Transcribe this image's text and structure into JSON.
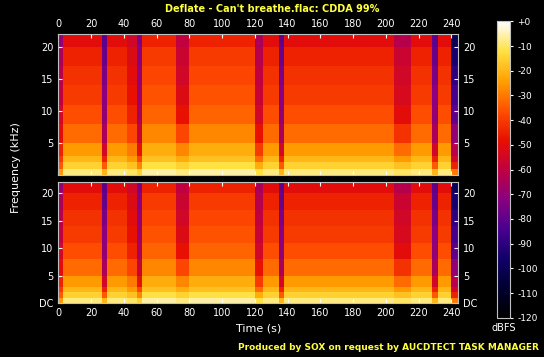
{
  "title": "Deflate - Can't breathe.flac: CDDA 99%",
  "x_label": "Time (s)",
  "y_label": "Frequency (kHz)",
  "footer": "Produced by SOX on request by AUCDTECT TASK MANAGER",
  "colorbar": {
    "label": "dBFS",
    "range": [
      -120,
      0
    ],
    "ticks": [
      {
        "value": 0,
        "label": "+0"
      },
      -10,
      -20,
      -30,
      -40,
      -50,
      -60,
      -70,
      -80,
      -90,
      -100,
      -110,
      -120
    ]
  },
  "chart_data": [
    {
      "type": "heatmap",
      "xlim": [
        0,
        244
      ],
      "ylim": [
        0,
        22.05
      ],
      "xticks": [
        0,
        20,
        40,
        60,
        80,
        100,
        120,
        140,
        160,
        180,
        200,
        220,
        240
      ],
      "yticks": [
        5,
        10,
        15,
        20
      ],
      "time_edges": [
        0,
        3,
        27,
        30,
        42,
        48,
        51,
        72,
        80,
        120,
        125,
        135,
        138,
        205,
        215,
        228,
        232,
        240,
        244
      ],
      "frequency_edges": [
        0,
        1,
        2,
        3,
        5,
        8,
        11,
        14,
        17,
        20,
        22.05
      ],
      "cells": [
        [
          -25,
          -8,
          -20,
          -8,
          -10,
          -15,
          -6,
          -8,
          -6,
          -12,
          -8,
          -20,
          -8,
          -10,
          -8,
          -20,
          -8,
          -30
        ],
        [
          -35,
          -15,
          -35,
          -15,
          -18,
          -28,
          -12,
          -15,
          -12,
          -22,
          -15,
          -35,
          -15,
          -18,
          -15,
          -35,
          -15,
          -45
        ],
        [
          -40,
          -20,
          -45,
          -20,
          -25,
          -38,
          -18,
          -22,
          -18,
          -32,
          -20,
          -45,
          -20,
          -25,
          -20,
          -45,
          -20,
          -55
        ],
        [
          -45,
          -25,
          -55,
          -25,
          -30,
          -48,
          -22,
          -28,
          -22,
          -40,
          -25,
          -55,
          -25,
          -32,
          -25,
          -55,
          -25,
          -62
        ],
        [
          -50,
          -32,
          -65,
          -32,
          -38,
          -58,
          -28,
          -38,
          -28,
          -48,
          -32,
          -65,
          -32,
          -42,
          -32,
          -65,
          -32,
          -70
        ],
        [
          -55,
          -37,
          -70,
          -37,
          -45,
          -65,
          -33,
          -48,
          -33,
          -55,
          -37,
          -70,
          -37,
          -50,
          -37,
          -70,
          -37,
          -80
        ],
        [
          -60,
          -40,
          -72,
          -40,
          -48,
          -68,
          -36,
          -52,
          -36,
          -58,
          -40,
          -72,
          -40,
          -53,
          -40,
          -72,
          -40,
          -85
        ],
        [
          -62,
          -42,
          -75,
          -42,
          -50,
          -70,
          -38,
          -55,
          -38,
          -60,
          -42,
          -75,
          -42,
          -55,
          -42,
          -75,
          -42,
          -90
        ],
        [
          -65,
          -45,
          -78,
          -45,
          -52,
          -72,
          -40,
          -57,
          -40,
          -62,
          -45,
          -78,
          -45,
          -57,
          -45,
          -78,
          -45,
          -95
        ],
        [
          -70,
          -50,
          -80,
          -50,
          -55,
          -75,
          -45,
          -60,
          -45,
          -65,
          -50,
          -80,
          -50,
          -62,
          -50,
          -80,
          -50,
          -100
        ]
      ]
    },
    {
      "type": "heatmap",
      "xlim": [
        0,
        244
      ],
      "ylim": [
        0,
        22.05
      ],
      "xticks": [
        0,
        20,
        40,
        60,
        80,
        100,
        120,
        140,
        160,
        180,
        200,
        220,
        240
      ],
      "yticks": [
        {
          "value": 0,
          "label": "DC"
        },
        5,
        10,
        15,
        20
      ],
      "time_edges": [
        0,
        3,
        27,
        30,
        42,
        48,
        51,
        72,
        80,
        120,
        125,
        135,
        138,
        205,
        215,
        228,
        232,
        240,
        244
      ],
      "frequency_edges": [
        0,
        1,
        2,
        3,
        5,
        8,
        11,
        14,
        17,
        20,
        22.05
      ],
      "cells": [
        [
          -25,
          -8,
          -20,
          -8,
          -10,
          -15,
          -6,
          -8,
          -6,
          -12,
          -8,
          -20,
          -8,
          -10,
          -8,
          -20,
          -8,
          -30
        ],
        [
          -35,
          -15,
          -35,
          -15,
          -18,
          -28,
          -12,
          -15,
          -12,
          -22,
          -15,
          -35,
          -15,
          -18,
          -15,
          -35,
          -15,
          -45
        ],
        [
          -40,
          -20,
          -45,
          -20,
          -25,
          -38,
          -18,
          -22,
          -18,
          -32,
          -20,
          -45,
          -20,
          -25,
          -20,
          -45,
          -20,
          -55
        ],
        [
          -45,
          -25,
          -55,
          -25,
          -30,
          -48,
          -22,
          -28,
          -22,
          -40,
          -25,
          -55,
          -25,
          -32,
          -25,
          -55,
          -25,
          -62
        ],
        [
          -50,
          -32,
          -65,
          -32,
          -38,
          -58,
          -28,
          -38,
          -28,
          -48,
          -32,
          -65,
          -32,
          -42,
          -32,
          -65,
          -32,
          -70
        ],
        [
          -55,
          -37,
          -70,
          -37,
          -45,
          -65,
          -33,
          -48,
          -33,
          -55,
          -37,
          -70,
          -37,
          -50,
          -37,
          -70,
          -37,
          -80
        ],
        [
          -60,
          -40,
          -72,
          -40,
          -48,
          -68,
          -36,
          -52,
          -36,
          -58,
          -40,
          -72,
          -40,
          -53,
          -40,
          -72,
          -40,
          -85
        ],
        [
          -62,
          -42,
          -75,
          -42,
          -50,
          -70,
          -38,
          -55,
          -38,
          -60,
          -42,
          -75,
          -42,
          -55,
          -42,
          -75,
          -42,
          -90
        ],
        [
          -65,
          -45,
          -78,
          -45,
          -52,
          -72,
          -40,
          -57,
          -40,
          -62,
          -45,
          -78,
          -45,
          -57,
          -45,
          -78,
          -45,
          -95
        ],
        [
          -70,
          -50,
          -80,
          -50,
          -55,
          -75,
          -45,
          -60,
          -45,
          -65,
          -50,
          -80,
          -50,
          -62,
          -50,
          -80,
          -50,
          -100
        ]
      ]
    }
  ]
}
